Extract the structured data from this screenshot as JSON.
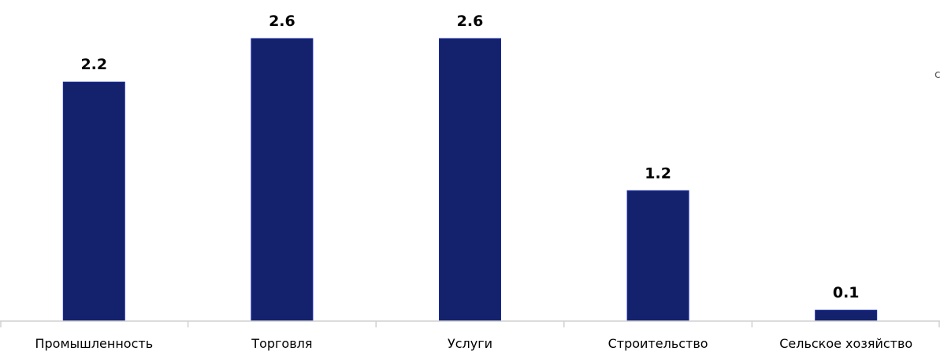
{
  "chart_data": {
    "type": "bar",
    "categories": [
      "Промышленность",
      "Торговля",
      "Услуги",
      "Строительство",
      "Сельское хозяйство"
    ],
    "values": [
      2.2,
      2.6,
      2.6,
      1.2,
      0.1
    ],
    "value_labels": [
      "2.2",
      "2.6",
      "2.6",
      "1.2",
      "0.1"
    ],
    "title": "",
    "xlabel": "",
    "ylabel": "",
    "ylim": [
      0,
      2.6
    ],
    "grid": false,
    "legend": "none"
  },
  "colors": {
    "bar": "#14226e",
    "axis": "#d0d0d0"
  },
  "edge_glyph": "c"
}
